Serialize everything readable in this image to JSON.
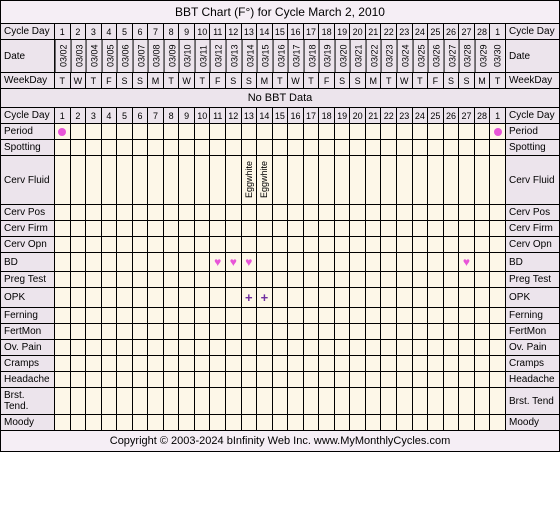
{
  "title": "BBT Chart (F°) for Cycle March 2, 2010",
  "no_data_label": "No BBT Data",
  "copyright": "Copyright © 2003-2024 bInfinity Web Inc.    www.MyMonthlyCycles.com",
  "colors": {
    "header_bg": "#ece4ec",
    "data_bg": "#fdf7e8",
    "title_bg": "#f5eef5",
    "period_dot": "#e855d8",
    "heart": "#e855d8",
    "plus": "#7030a0"
  },
  "header_rows": [
    {
      "label": "Cycle Day",
      "values": [
        "1",
        "2",
        "3",
        "4",
        "5",
        "6",
        "7",
        "8",
        "9",
        "10",
        "11",
        "12",
        "13",
        "14",
        "15",
        "16",
        "17",
        "18",
        "19",
        "20",
        "21",
        "22",
        "23",
        "24",
        "25",
        "26",
        "27",
        "28",
        "1"
      ],
      "right_label": "Cycle Day"
    },
    {
      "label": "Date",
      "values": [
        "03/02",
        "03/03",
        "03/04",
        "03/05",
        "03/06",
        "03/07",
        "03/08",
        "03/09",
        "03/10",
        "03/11",
        "03/12",
        "03/13",
        "03/14",
        "03/15",
        "03/16",
        "03/17",
        "03/18",
        "03/19",
        "03/20",
        "03/21",
        "03/22",
        "03/23",
        "03/24",
        "03/25",
        "03/26",
        "03/27",
        "03/28",
        "03/29",
        "03/30"
      ],
      "right_label": "Date",
      "vertical": true
    },
    {
      "label": "WeekDay",
      "values": [
        "T",
        "W",
        "T",
        "F",
        "S",
        "S",
        "M",
        "T",
        "W",
        "T",
        "F",
        "S",
        "S",
        "M",
        "T",
        "W",
        "T",
        "F",
        "S",
        "S",
        "M",
        "T",
        "W",
        "T",
        "F",
        "S",
        "S",
        "M",
        "T"
      ],
      "right_label": "WeekDay"
    }
  ],
  "cycle_day_row": {
    "label": "Cycle Day",
    "values": [
      "1",
      "2",
      "3",
      "4",
      "5",
      "6",
      "7",
      "8",
      "9",
      "10",
      "11",
      "12",
      "13",
      "14",
      "15",
      "16",
      "17",
      "18",
      "19",
      "20",
      "21",
      "22",
      "23",
      "24",
      "25",
      "26",
      "27",
      "28",
      "1"
    ],
    "right_label": "Cycle Day"
  },
  "data_rows": [
    {
      "label": "Period",
      "right_label": "Period",
      "marks": {
        "0": "dot",
        "28": "dot"
      }
    },
    {
      "label": "Spotting",
      "right_label": "Spotting",
      "marks": {}
    },
    {
      "label": "Cerv Fluid",
      "right_label": "Cerv Fluid",
      "tall": true,
      "marks": {
        "12": "Eggwhite",
        "13": "Eggwhite"
      },
      "vertical_marks": true
    },
    {
      "label": "Cerv Pos",
      "right_label": "Cerv Pos",
      "marks": {}
    },
    {
      "label": "Cerv Firm",
      "right_label": "Cerv Firm",
      "marks": {}
    },
    {
      "label": "Cerv Opn",
      "right_label": "Cerv Opn",
      "marks": {}
    },
    {
      "label": "BD",
      "right_label": "BD",
      "marks": {
        "10": "heart",
        "11": "heart",
        "12": "heart",
        "26": "heart"
      }
    },
    {
      "label": "Preg Test",
      "right_label": "Preg Test",
      "marks": {}
    },
    {
      "label": "OPK",
      "right_label": "OPK",
      "marks": {
        "12": "plus",
        "13": "plus"
      }
    },
    {
      "label": "Ferning",
      "right_label": "Ferning",
      "marks": {}
    },
    {
      "label": "FertMon",
      "right_label": "FertMon",
      "marks": {}
    },
    {
      "label": "Ov. Pain",
      "right_label": "Ov. Pain",
      "marks": {}
    },
    {
      "label": "Cramps",
      "right_label": "Cramps",
      "marks": {}
    },
    {
      "label": "Headache",
      "right_label": "Headache",
      "marks": {}
    },
    {
      "label": "Brst. Tend.",
      "right_label": "Brst. Tend",
      "marks": {}
    },
    {
      "label": "Moody",
      "right_label": "Moody",
      "marks": {}
    }
  ],
  "num_days": 29
}
